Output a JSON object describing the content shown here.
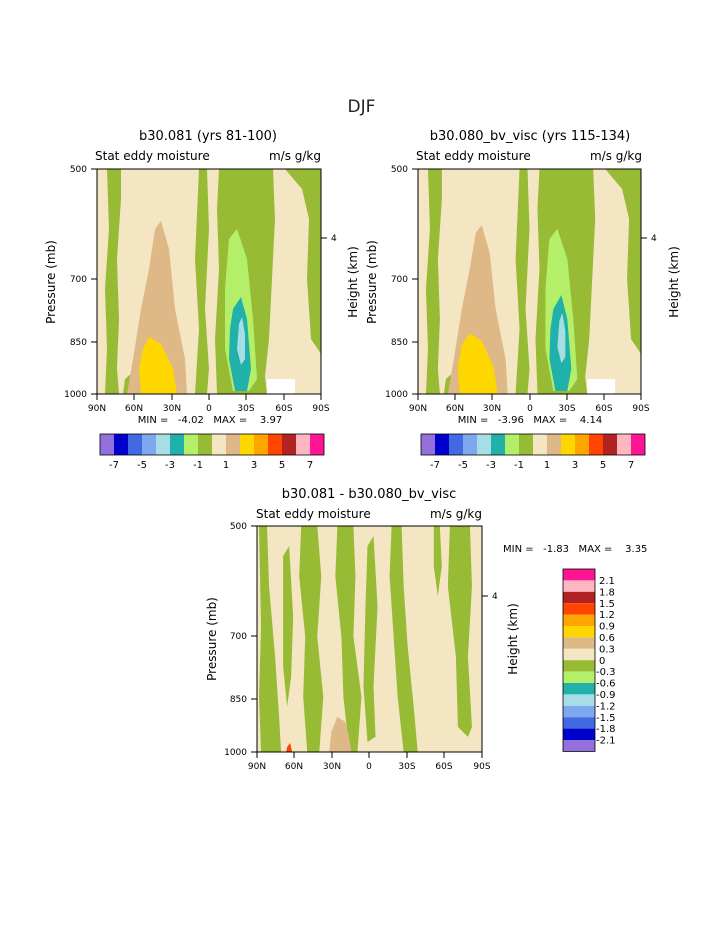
{
  "page_title": "DJF",
  "colors": {
    "c_m7": "#9370db",
    "c_m6": "#0000cd",
    "c_m5": "#4169e1",
    "c_m4": "#7ea8ee",
    "c_m3": "#a7dde4",
    "c_m2": "#20b2aa",
    "c_m1": "#b4ef6a",
    "c_m0": "#98bb35",
    "c_p0": "#f5e6c3",
    "c_p1": "#deb887",
    "c_p2": "#ffd700",
    "c_p3": "#ffa500",
    "c_p4": "#ff4500",
    "c_p5": "#b22222",
    "c_p6": "#ffb6c1",
    "c_p7": "#ff1493"
  },
  "chart_data": [
    {
      "id": "left",
      "type": "contour",
      "title": "b30.081 (yrs 81-100)",
      "subtitle_left": "Stat eddy moisture",
      "subtitle_right": "m/s g/kg",
      "ylabel": "Pressure (mb)",
      "y2label": "Height (km)",
      "y2_ticks": [
        "4"
      ],
      "x_ticks": [
        "90N",
        "60N",
        "30N",
        "0",
        "30S",
        "60S",
        "90S"
      ],
      "y_ticks": [
        "500",
        "700",
        "850",
        "1000"
      ],
      "xlim": [
        90,
        -90
      ],
      "ylim": [
        1000,
        500
      ],
      "min_max": "MIN =   -4.02   MAX =    3.97",
      "min": -4.02,
      "max": 3.97,
      "colorbar_labels": [
        "-7",
        "-5",
        "-3",
        "-1",
        "1",
        "3",
        "5",
        "7"
      ]
    },
    {
      "id": "right",
      "type": "contour",
      "title": "b30.080_bv_visc (yrs 115-134)",
      "subtitle_left": "Stat eddy moisture",
      "subtitle_right": "m/s g/kg",
      "ylabel": "Pressure (mb)",
      "y2label": "Height (km)",
      "y2_ticks": [
        "4"
      ],
      "x_ticks": [
        "90N",
        "60N",
        "30N",
        "0",
        "30S",
        "60S",
        "90S"
      ],
      "y_ticks": [
        "500",
        "700",
        "850",
        "1000"
      ],
      "xlim": [
        90,
        -90
      ],
      "ylim": [
        1000,
        500
      ],
      "min_max": "MIN =   -3.96   MAX =    4.14",
      "min": -3.96,
      "max": 4.14,
      "colorbar_labels": [
        "-7",
        "-5",
        "-3",
        "-1",
        "1",
        "3",
        "5",
        "7"
      ]
    },
    {
      "id": "diff",
      "type": "contour",
      "title": "b30.081 - b30.080_bv_visc",
      "subtitle_left": "Stat eddy moisture",
      "subtitle_right": "m/s g/kg",
      "ylabel": "Pressure (mb)",
      "y2label": "Height (km)",
      "y2_ticks": [
        "4"
      ],
      "x_ticks": [
        "90N",
        "60N",
        "30N",
        "0",
        "30S",
        "60S",
        "90S"
      ],
      "y_ticks": [
        "500",
        "700",
        "850",
        "1000"
      ],
      "xlim": [
        90,
        -90
      ],
      "ylim": [
        1000,
        500
      ],
      "min_max": "MIN =   -1.83   MAX =    3.35",
      "min": -1.83,
      "max": 3.35,
      "colorbar_labels": [
        "2.1",
        "1.8",
        "1.5",
        "1.2",
        "0.9",
        "0.6",
        "0.3",
        "0",
        "-0.3",
        "-0.6",
        "-0.9",
        "-1.2",
        "-1.5",
        "-1.8",
        "-2.1"
      ]
    }
  ]
}
